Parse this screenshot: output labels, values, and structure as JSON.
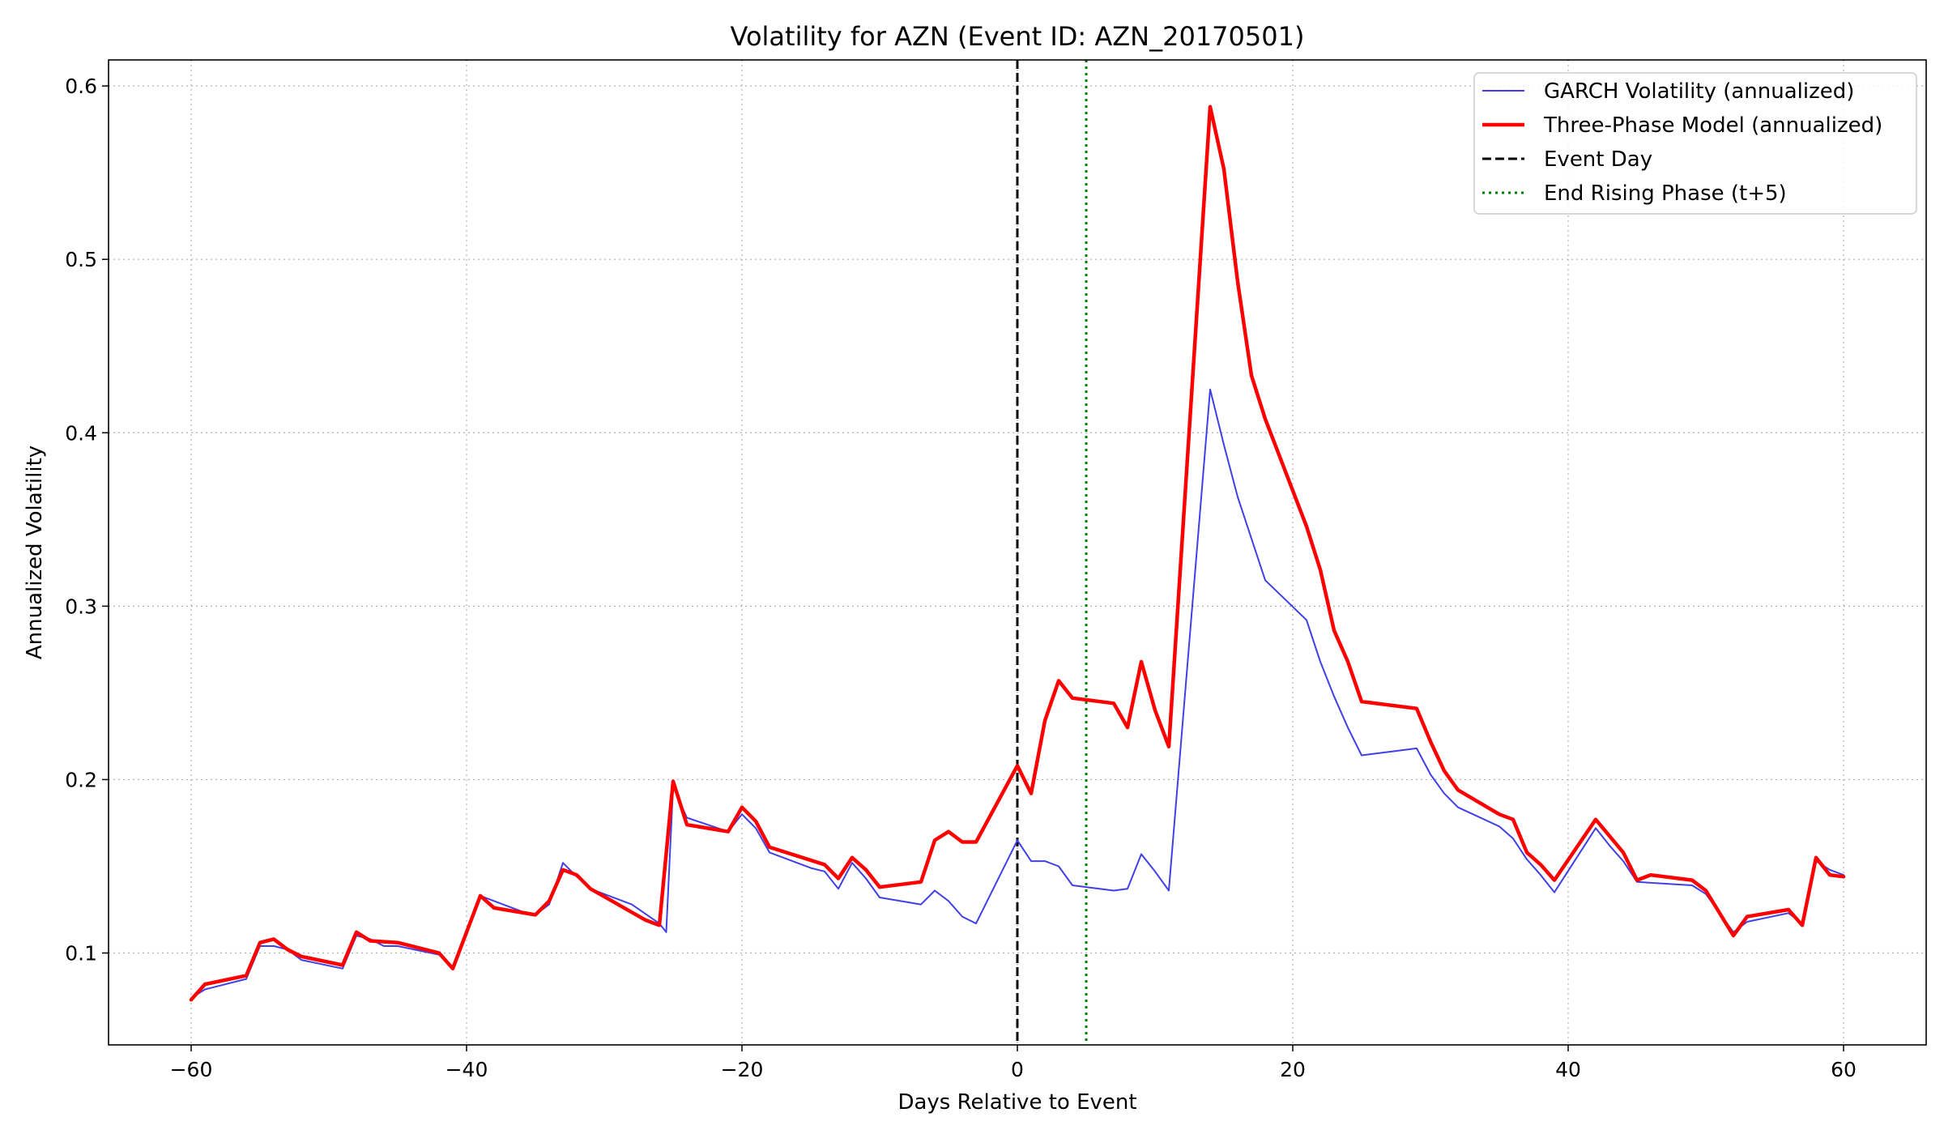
{
  "chart_data": {
    "type": "line",
    "title": "Volatility for AZN (Event ID: AZN_20170501)",
    "xlabel": "Days Relative to Event",
    "ylabel": "Annualized Volatility",
    "xlim": [
      -66,
      66
    ],
    "ylim": [
      0.047,
      0.615
    ],
    "xticks": [
      -60,
      -40,
      -20,
      0,
      20,
      40,
      60
    ],
    "xtick_labels": [
      "−60",
      "−40",
      "−20",
      "0",
      "20",
      "40",
      "60"
    ],
    "yticks": [
      0.1,
      0.2,
      0.3,
      0.4,
      0.5,
      0.6
    ],
    "ytick_labels": [
      "0.1",
      "0.2",
      "0.3",
      "0.4",
      "0.5",
      "0.6"
    ],
    "grid": true,
    "legend_position": "top-right",
    "series": [
      {
        "name": "GARCH Volatility (annualized)",
        "color": "#4040e8",
        "style": "solid-thin",
        "points": [
          [
            -60,
            0.074
          ],
          [
            -59,
            0.079
          ],
          [
            -56,
            0.085
          ],
          [
            -55,
            0.104
          ],
          [
            -54,
            0.104
          ],
          [
            -53,
            0.102
          ],
          [
            -52,
            0.096
          ],
          [
            -49,
            0.091
          ],
          [
            -48,
            0.11
          ],
          [
            -47,
            0.108
          ],
          [
            -46,
            0.104
          ],
          [
            -45,
            0.104
          ],
          [
            -42,
            0.099
          ],
          [
            -41,
            0.091
          ],
          [
            -39,
            0.133
          ],
          [
            -36,
            0.124
          ],
          [
            -35,
            0.122
          ],
          [
            -34,
            0.128
          ],
          [
            -33,
            0.152
          ],
          [
            -32,
            0.144
          ],
          [
            -31,
            0.137
          ],
          [
            -28,
            0.128
          ],
          [
            -26,
            0.117
          ],
          [
            -25.5,
            0.112
          ],
          [
            -25,
            0.196
          ],
          [
            -24,
            0.178
          ],
          [
            -21,
            0.17
          ],
          [
            -20,
            0.18
          ],
          [
            -19,
            0.172
          ],
          [
            -18,
            0.158
          ],
          [
            -15,
            0.149
          ],
          [
            -14,
            0.147
          ],
          [
            -13,
            0.137
          ],
          [
            -12,
            0.152
          ],
          [
            -11,
            0.143
          ],
          [
            -10,
            0.132
          ],
          [
            -7,
            0.128
          ],
          [
            -6,
            0.136
          ],
          [
            -5,
            0.13
          ],
          [
            -4,
            0.121
          ],
          [
            -3,
            0.117
          ],
          [
            0,
            0.165
          ],
          [
            1,
            0.153
          ],
          [
            2,
            0.153
          ],
          [
            3,
            0.15
          ],
          [
            4,
            0.139
          ],
          [
            7,
            0.136
          ],
          [
            8,
            0.137
          ],
          [
            9,
            0.157
          ],
          [
            10,
            0.147
          ],
          [
            11,
            0.136
          ],
          [
            14,
            0.425
          ],
          [
            15,
            0.393
          ],
          [
            16,
            0.363
          ],
          [
            18,
            0.315
          ],
          [
            21,
            0.292
          ],
          [
            22,
            0.268
          ],
          [
            23,
            0.248
          ],
          [
            24,
            0.23
          ],
          [
            25,
            0.214
          ],
          [
            29,
            0.218
          ],
          [
            30,
            0.203
          ],
          [
            31,
            0.192
          ],
          [
            32,
            0.184
          ],
          [
            35,
            0.173
          ],
          [
            36,
            0.166
          ],
          [
            37,
            0.154
          ],
          [
            38,
            0.145
          ],
          [
            39,
            0.135
          ],
          [
            42,
            0.172
          ],
          [
            43,
            0.162
          ],
          [
            44,
            0.153
          ],
          [
            45,
            0.141
          ],
          [
            49,
            0.139
          ],
          [
            50,
            0.134
          ],
          [
            52,
            0.112
          ],
          [
            53,
            0.118
          ],
          [
            56,
            0.123
          ],
          [
            57,
            0.117
          ],
          [
            58,
            0.153
          ],
          [
            59,
            0.148
          ],
          [
            60,
            0.145
          ]
        ]
      },
      {
        "name": "Three-Phase Model (annualized)",
        "color": "#ff0000",
        "style": "solid-thick",
        "points": [
          [
            -60,
            0.073
          ],
          [
            -59,
            0.082
          ],
          [
            -56,
            0.087
          ],
          [
            -55,
            0.106
          ],
          [
            -54,
            0.108
          ],
          [
            -53,
            0.102
          ],
          [
            -52,
            0.098
          ],
          [
            -49,
            0.093
          ],
          [
            -48,
            0.112
          ],
          [
            -47,
            0.107
          ],
          [
            -45,
            0.106
          ],
          [
            -42,
            0.1
          ],
          [
            -41,
            0.091
          ],
          [
            -39,
            0.133
          ],
          [
            -38,
            0.126
          ],
          [
            -35,
            0.122
          ],
          [
            -34,
            0.13
          ],
          [
            -33,
            0.148
          ],
          [
            -32,
            0.145
          ],
          [
            -31,
            0.137
          ],
          [
            -27,
            0.119
          ],
          [
            -26,
            0.116
          ],
          [
            -25,
            0.199
          ],
          [
            -24,
            0.174
          ],
          [
            -21,
            0.17
          ],
          [
            -20,
            0.184
          ],
          [
            -19,
            0.176
          ],
          [
            -18,
            0.161
          ],
          [
            -14,
            0.151
          ],
          [
            -13,
            0.143
          ],
          [
            -12,
            0.155
          ],
          [
            -11,
            0.148
          ],
          [
            -10,
            0.138
          ],
          [
            -7,
            0.141
          ],
          [
            -6,
            0.165
          ],
          [
            -5,
            0.17
          ],
          [
            -4,
            0.164
          ],
          [
            -3,
            0.164
          ],
          [
            0,
            0.208
          ],
          [
            1,
            0.192
          ],
          [
            2,
            0.234
          ],
          [
            3,
            0.257
          ],
          [
            4,
            0.247
          ],
          [
            7,
            0.244
          ],
          [
            8,
            0.23
          ],
          [
            9,
            0.268
          ],
          [
            10,
            0.24
          ],
          [
            11,
            0.219
          ],
          [
            14,
            0.588
          ],
          [
            15,
            0.552
          ],
          [
            16,
            0.487
          ],
          [
            17,
            0.433
          ],
          [
            18,
            0.408
          ],
          [
            21,
            0.346
          ],
          [
            22,
            0.321
          ],
          [
            23,
            0.286
          ],
          [
            24,
            0.268
          ],
          [
            25,
            0.245
          ],
          [
            29,
            0.241
          ],
          [
            30,
            0.222
          ],
          [
            31,
            0.205
          ],
          [
            32,
            0.194
          ],
          [
            35,
            0.18
          ],
          [
            36,
            0.177
          ],
          [
            37,
            0.158
          ],
          [
            38,
            0.151
          ],
          [
            39,
            0.142
          ],
          [
            42,
            0.177
          ],
          [
            44,
            0.158
          ],
          [
            45,
            0.142
          ],
          [
            46,
            0.145
          ],
          [
            49,
            0.142
          ],
          [
            50,
            0.136
          ],
          [
            52,
            0.11
          ],
          [
            53,
            0.121
          ],
          [
            56,
            0.125
          ],
          [
            57,
            0.116
          ],
          [
            58,
            0.155
          ],
          [
            59,
            0.145
          ],
          [
            60,
            0.144
          ]
        ]
      }
    ],
    "vlines": [
      {
        "name": "Event Day",
        "x": 0,
        "color": "#000000",
        "style": "dashed"
      },
      {
        "name": "End Rising Phase (t+5)",
        "x": 5,
        "color": "#008000",
        "style": "dotted"
      }
    ]
  }
}
